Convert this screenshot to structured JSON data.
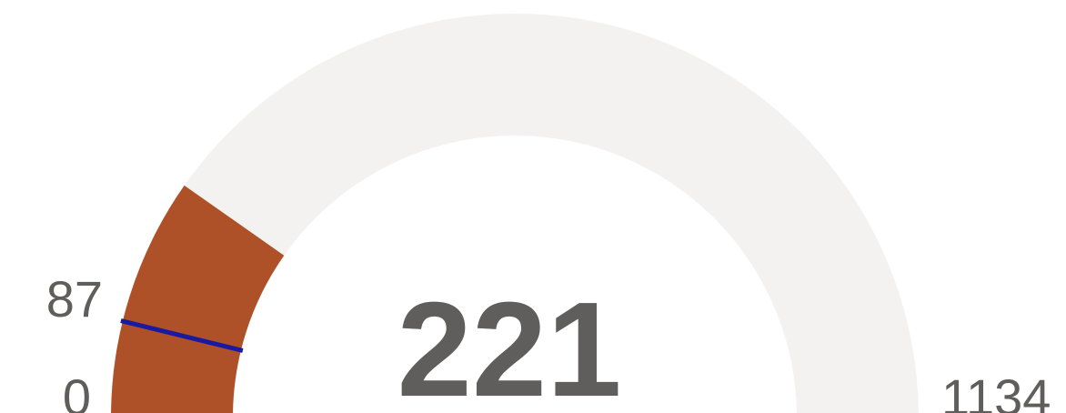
{
  "chart_data": {
    "type": "gauge",
    "value": 221,
    "min": 0,
    "max": 1134,
    "target": 87,
    "color": "#ae5128",
    "track_color": "#f3f2f1",
    "target_color": "#1a1aa0"
  }
}
